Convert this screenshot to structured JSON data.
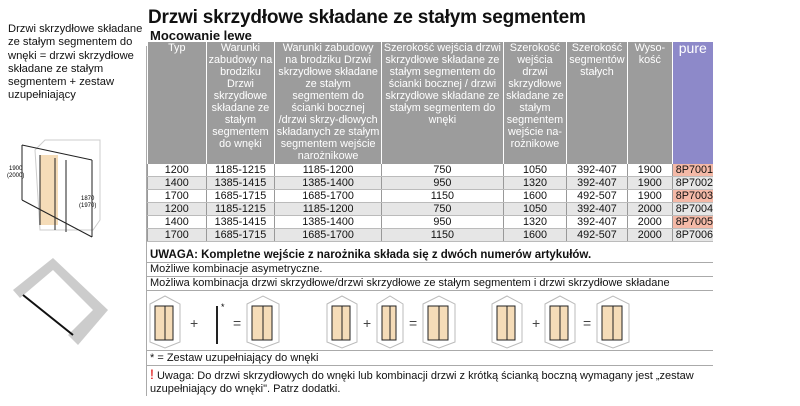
{
  "title": "Drzwi skrzydłowe składane ze stałym segmentem",
  "subtitle": "Mocowanie lewe",
  "side_text": "Drzwi skrzydłowe składane ze stałym segmentem do wnęki = drzwi skrzydłowe składane ze stałym segmentem + zestaw uzupełniający",
  "diagram": {
    "h1": "1900",
    "h1b": "(2000)",
    "h2": "1870",
    "h2b": "(1970)"
  },
  "table": {
    "headers": [
      "Typ",
      "Warunki zabudowy na brodziku Drzwi skrzydłowe składane ze stałym segmentem do wnęki",
      "Warunki zabudowy na brodziku Drzwi skrzydłowe składane ze stałym segmentem do ścianki bocznej /drzwi skrzy-dłowych składanych ze stałym segmentem wejście narożnikowe",
      "Szerokość wejścia drzwi skrzydłowe składane ze stałym segmentem do ścianki bocznej / drzwi skrzydłowe składane ze stałym segmentem do wnęki",
      "Szerokość wejścia drzwi skrzydłowe składane ze stałym segmentem wejście na-rożnikowe",
      "Szerokość segmentów stałych",
      "Wyso-kość",
      "pure"
    ],
    "rows": [
      [
        "1200",
        "1185-1215",
        "1185-1200",
        "750",
        "1050",
        "392-407",
        "1900",
        "8P7001"
      ],
      [
        "1400",
        "1385-1415",
        "1385-1400",
        "950",
        "1320",
        "392-407",
        "1900",
        "8P7002"
      ],
      [
        "1700",
        "1685-1715",
        "1685-1700",
        "1150",
        "1600",
        "492-507",
        "1900",
        "8P7003"
      ],
      [
        "1200",
        "1185-1215",
        "1185-1200",
        "750",
        "1050",
        "392-407",
        "2000",
        "8P7004"
      ],
      [
        "1400",
        "1385-1415",
        "1385-1400",
        "950",
        "1320",
        "392-407",
        "2000",
        "8P7005"
      ],
      [
        "1700",
        "1685-1715",
        "1685-1700",
        "1150",
        "1600",
        "492-507",
        "2000",
        "8P7006"
      ]
    ]
  },
  "notes": {
    "uwaga": "UWAGA: Kompletne wejście z narożnika składa się z dwóch numerów artykułów.",
    "asym": "Możliwe kombinacje asymetryczne.",
    "combo": "Możliwa kombinacja drzwi skrzydłowe/drzwi skrzydłowe ze stałym segmentem i drzwi skrzydłowe składane",
    "footnote": "* = Zestaw uzupełniający do wnęki",
    "warning_mark": "!",
    "warning": "Uwaga: Do drzwi skrzydłowych do wnęki lub kombinacji drzwi z krótką ścianką boczną wymagany jest „zestaw uzupełniający do wnęki\". Patrz dodatki."
  },
  "combos": {
    "plus": "+",
    "equals": "=",
    "star": "*"
  },
  "colors": {
    "header": "#9c9c9c",
    "pure": "#8d89c9",
    "article": "#f4b9a7",
    "glass": "#f5dcb8"
  }
}
